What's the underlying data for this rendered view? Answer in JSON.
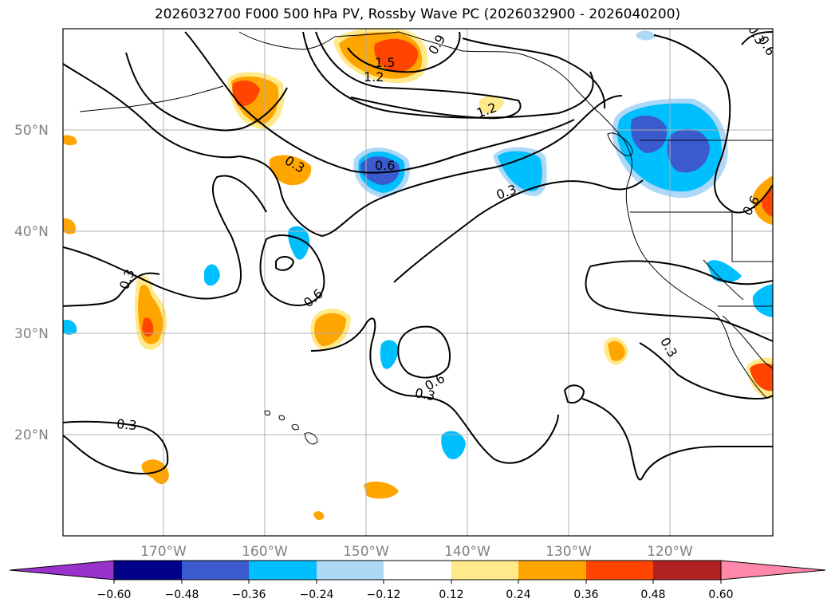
{
  "title": "2026032700 F000 500 hPa PV, Rossby Wave PC (2026032900 - 2026040200)",
  "colors": {
    "neg_060": "#9932CC",
    "neg_048": "#00008B",
    "neg_036": "#3a5acd",
    "neg_024": "#00BFFF",
    "neg_012": "#ADD8F6",
    "zero": "#FFFFFF",
    "pos_012": "#FFE98A",
    "pos_024": "#FFA500",
    "pos_036": "#FF4500",
    "pos_048": "#B22222",
    "pos_060": "#FF88AA"
  },
  "lat_labels": [
    "50°N",
    "40°N",
    "30°N",
    "20°N"
  ],
  "lon_labels": [
    "170°W",
    "160°W",
    "150°W",
    "140°W",
    "130°W",
    "120°W"
  ],
  "contour_labels": [
    "0.9",
    "1.5",
    "1.2",
    "1.2",
    "0.3",
    "0.6",
    "0.3",
    "0.3",
    "0.6",
    "0.6",
    "0.3",
    "0.3",
    "0.6",
    "0.3",
    "0.3",
    "0.6"
  ],
  "colorbar_ticks": [
    "−0.60",
    "−0.48",
    "−0.36",
    "−0.24",
    "−0.12",
    "0.12",
    "0.24",
    "0.36",
    "0.48",
    "0.60"
  ]
}
